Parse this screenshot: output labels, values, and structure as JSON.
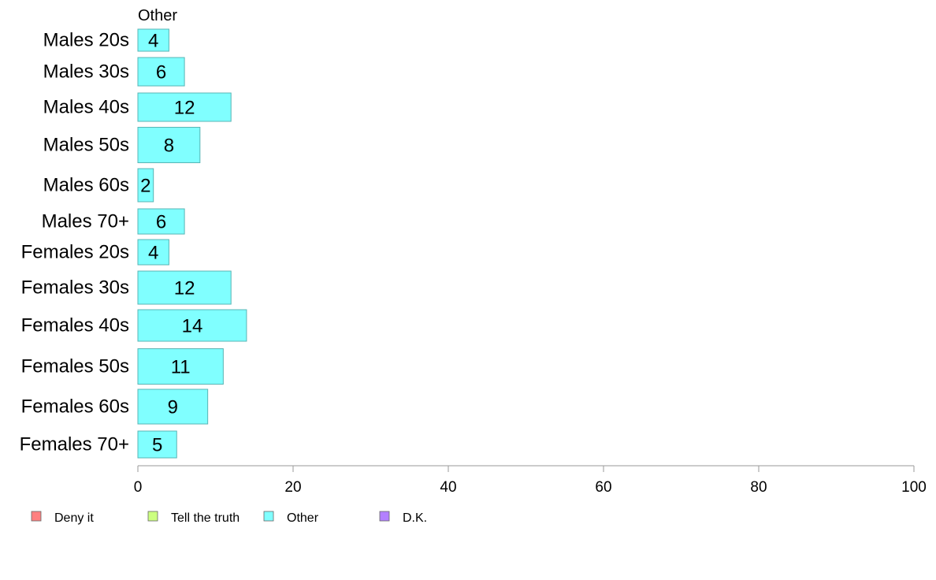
{
  "chart_data": {
    "type": "bar",
    "orientation": "horizontal",
    "panel_title": "Other",
    "categories": [
      "Males 20s",
      "Males 30s",
      "Males 40s",
      "Males 50s",
      "Males 60s",
      "Males 70+",
      "Females 20s",
      "Females 30s",
      "Females 40s",
      "Females 50s",
      "Females 60s",
      "Females 70+"
    ],
    "values": [
      4,
      6,
      12,
      8,
      2,
      6,
      4,
      12,
      14,
      11,
      9,
      5
    ],
    "bar_labels": [
      "4",
      "6",
      "12",
      "8",
      "2",
      "6",
      "4",
      "12",
      "14",
      "11",
      "9",
      "5"
    ],
    "xlim": [
      0,
      100
    ],
    "xticks": [
      0,
      20,
      40,
      60,
      80,
      100
    ],
    "xtick_labels": [
      "0",
      "20",
      "40",
      "60",
      "80",
      "100"
    ],
    "bar_color": "#80ffff",
    "grid": false,
    "legend_position": "bottom-left",
    "legend": [
      {
        "label": "Deny it",
        "color": "#ff8080"
      },
      {
        "label": "Tell the truth",
        "color": "#ccff80"
      },
      {
        "label": "Other",
        "color": "#80ffff"
      },
      {
        "label": "D.K.",
        "color": "#b380ff"
      }
    ]
  }
}
